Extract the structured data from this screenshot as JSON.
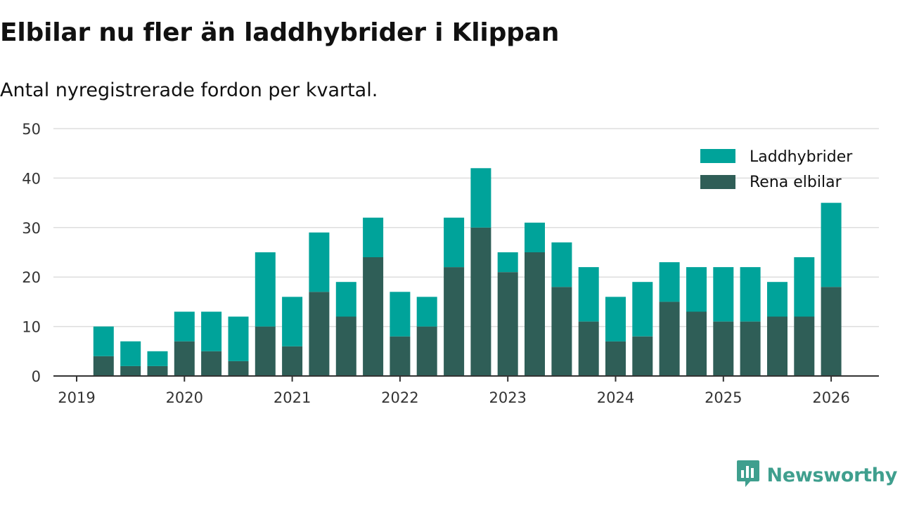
{
  "title": "Elbilar nu fler än laddhybrider i Klippan",
  "subtitle": "Antal nyregistrerade fordon per kvartal.",
  "brand": {
    "name": "Newsworthy",
    "icon": "newsworthy-logo-icon"
  },
  "colors": {
    "laddhybrider": "#00a39a",
    "rena_elbilar": "#2f5e57",
    "grid": "#dddddd",
    "axis": "#333333",
    "brand": "#3f9f8e"
  },
  "chart_data": {
    "type": "bar",
    "stacked": true,
    "categories": [
      "2019 Q2",
      "2019 Q3",
      "2019 Q4",
      "2020 Q1",
      "2020 Q2",
      "2020 Q3",
      "2020 Q4",
      "2021 Q1",
      "2021 Q2",
      "2021 Q3",
      "2021 Q4",
      "2022 Q1",
      "2022 Q2",
      "2022 Q3",
      "2022 Q4",
      "2023 Q1",
      "2023 Q2",
      "2023 Q3",
      "2023 Q4",
      "2024 Q1",
      "2024 Q2",
      "2024 Q3",
      "2024 Q4",
      "2025 Q1",
      "2025 Q2",
      "2025 Q3",
      "2025 Q4",
      "2026 Q1"
    ],
    "series": [
      {
        "name": "Rena elbilar",
        "values": [
          4,
          2,
          2,
          7,
          5,
          3,
          10,
          6,
          17,
          12,
          24,
          8,
          10,
          22,
          30,
          21,
          25,
          18,
          11,
          7,
          8,
          15,
          13,
          11,
          11,
          12,
          12,
          18
        ]
      },
      {
        "name": "Laddhybrider",
        "values": [
          6,
          5,
          3,
          6,
          8,
          9,
          15,
          10,
          12,
          7,
          8,
          9,
          6,
          10,
          12,
          4,
          6,
          9,
          11,
          9,
          11,
          8,
          9,
          11,
          11,
          7,
          12,
          17
        ]
      }
    ],
    "legend": [
      "Laddhybrider",
      "Rena elbilar"
    ],
    "x_ticks": [
      "2019",
      "2020",
      "2021",
      "2022",
      "2023",
      "2024",
      "2025",
      "2026"
    ],
    "y_ticks": [
      "0",
      "10",
      "20",
      "30",
      "40",
      "50"
    ],
    "ylim": [
      0,
      50
    ],
    "legend_position": "top-right",
    "grid": true
  }
}
